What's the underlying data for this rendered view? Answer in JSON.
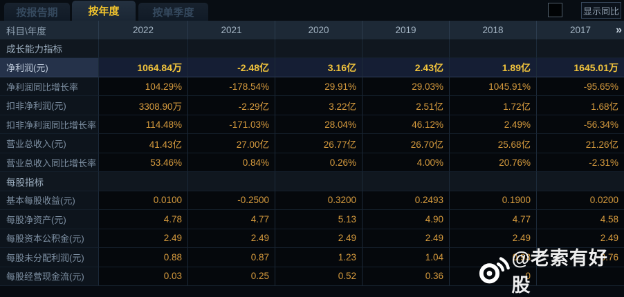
{
  "tabs": [
    {
      "label": "按报告期",
      "active": false
    },
    {
      "label": "按年度",
      "active": true
    },
    {
      "label": "按单季度",
      "active": false
    }
  ],
  "controls": {
    "show_yoy_label": "显示同比",
    "checkbox_checked": false
  },
  "table": {
    "corner_header": "科目\\年度",
    "year_headers": [
      "2022",
      "2021",
      "2020",
      "2019",
      "2018",
      "2017"
    ],
    "more_arrow": "»",
    "rows": [
      {
        "type": "section",
        "label": "成长能力指标",
        "values": [
          "",
          "",
          "",
          "",
          "",
          ""
        ]
      },
      {
        "type": "data",
        "highlight": true,
        "label": "净利润(元)",
        "values": [
          "1064.84万",
          "-2.48亿",
          "3.16亿",
          "2.43亿",
          "1.89亿",
          "1645.01万"
        ]
      },
      {
        "type": "data",
        "label": "净利润同比增长率",
        "values": [
          "104.29%",
          "-178.54%",
          "29.91%",
          "29.03%",
          "1045.91%",
          "-95.65%"
        ]
      },
      {
        "type": "data",
        "label": "扣非净利润(元)",
        "values": [
          "3308.90万",
          "-2.29亿",
          "3.22亿",
          "2.51亿",
          "1.72亿",
          "1.68亿"
        ]
      },
      {
        "type": "data",
        "label": "扣非净利润同比增长率",
        "values": [
          "114.48%",
          "-171.03%",
          "28.04%",
          "46.12%",
          "2.49%",
          "-56.34%"
        ]
      },
      {
        "type": "data",
        "label": "营业总收入(元)",
        "values": [
          "41.43亿",
          "27.00亿",
          "26.77亿",
          "26.70亿",
          "25.68亿",
          "21.26亿"
        ]
      },
      {
        "type": "data",
        "label": "营业总收入同比增长率",
        "values": [
          "53.46%",
          "0.84%",
          "0.26%",
          "4.00%",
          "20.76%",
          "-2.31%"
        ]
      },
      {
        "type": "section",
        "label": "每股指标",
        "values": [
          "",
          "",
          "",
          "",
          "",
          ""
        ]
      },
      {
        "type": "data",
        "label": "基本每股收益(元)",
        "values": [
          "0.0100",
          "-0.2500",
          "0.3200",
          "0.2493",
          "0.1900",
          "0.0200"
        ]
      },
      {
        "type": "data",
        "label": "每股净资产(元)",
        "values": [
          "4.78",
          "4.77",
          "5.13",
          "4.90",
          "4.77",
          "4.58"
        ]
      },
      {
        "type": "data",
        "label": "每股资本公积金(元)",
        "values": [
          "2.49",
          "2.49",
          "2.49",
          "2.49",
          "2.49",
          "2.49"
        ]
      },
      {
        "type": "data",
        "label": "每股未分配利润(元)",
        "values": [
          "0.88",
          "0.87",
          "1.23",
          "1.04",
          "0.93",
          "0.76"
        ]
      },
      {
        "type": "data",
        "label": "每股经营现金流(元)",
        "values": [
          "0.03",
          "0.25",
          "0.52",
          "0.36",
          "0",
          ""
        ]
      }
    ]
  },
  "watermark": {
    "icon": "weibo-icon",
    "text": "@老索有好股"
  },
  "colors": {
    "value_orange": "#d89c3e",
    "highlight_yellow": "#f2c43c",
    "active_tab_text": "#f3c52d",
    "header_bg": "#1d2936",
    "highlight_row_bg": "#25324a"
  }
}
